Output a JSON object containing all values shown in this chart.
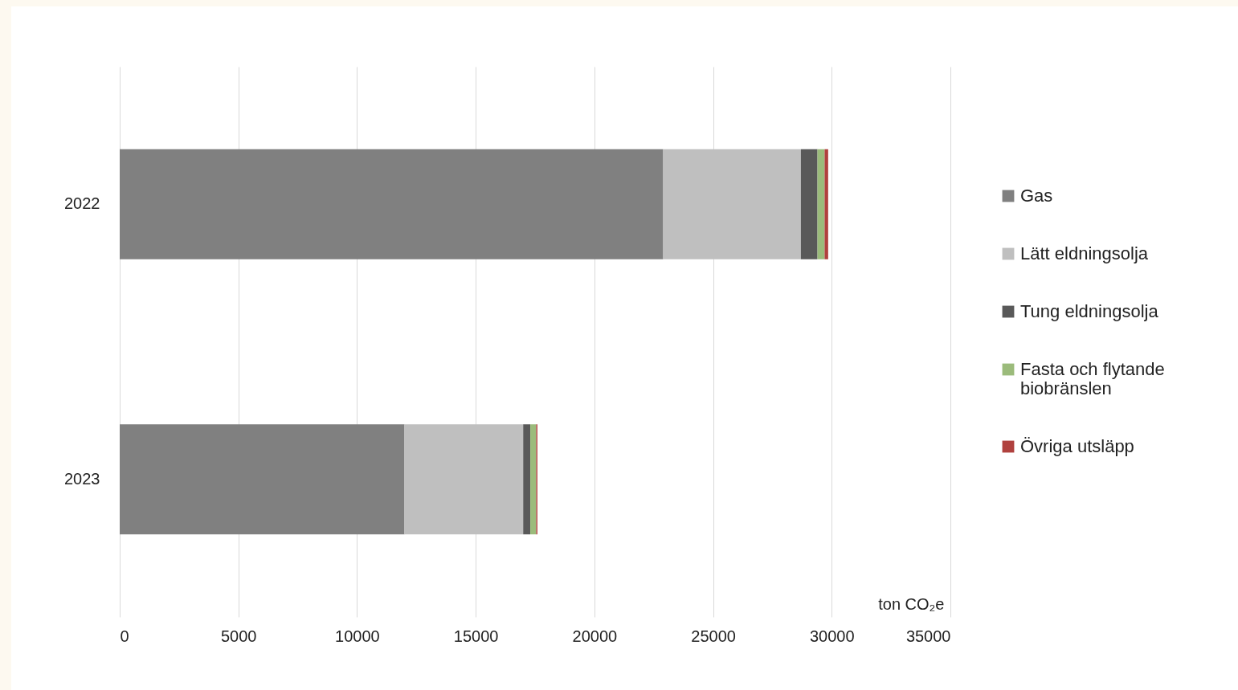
{
  "chart_data": {
    "type": "bar",
    "orientation": "horizontal",
    "stacked": true,
    "categories": [
      "2022",
      "2023"
    ],
    "series": [
      {
        "name": "Gas",
        "color": "#808080",
        "values": [
          22900,
          12000
        ]
      },
      {
        "name": "Lätt eldningsolja",
        "color": "#bfbfbf",
        "values": [
          5800,
          5000
        ]
      },
      {
        "name": "Tung eldningsolja",
        "color": "#595959",
        "values": [
          700,
          300
        ]
      },
      {
        "name": "Fasta och flytande biobränslen",
        "color": "#9bbb7b",
        "values": [
          300,
          250
        ]
      },
      {
        "name": "Övriga utsläpp",
        "color": "#b0413e",
        "values": [
          150,
          50
        ]
      }
    ],
    "xlabel": "ton CO₂e",
    "xlim": [
      0,
      35000
    ],
    "xticks": [
      0,
      5000,
      10000,
      15000,
      20000,
      25000,
      30000,
      35000
    ],
    "grid": "x",
    "legend": "right"
  }
}
